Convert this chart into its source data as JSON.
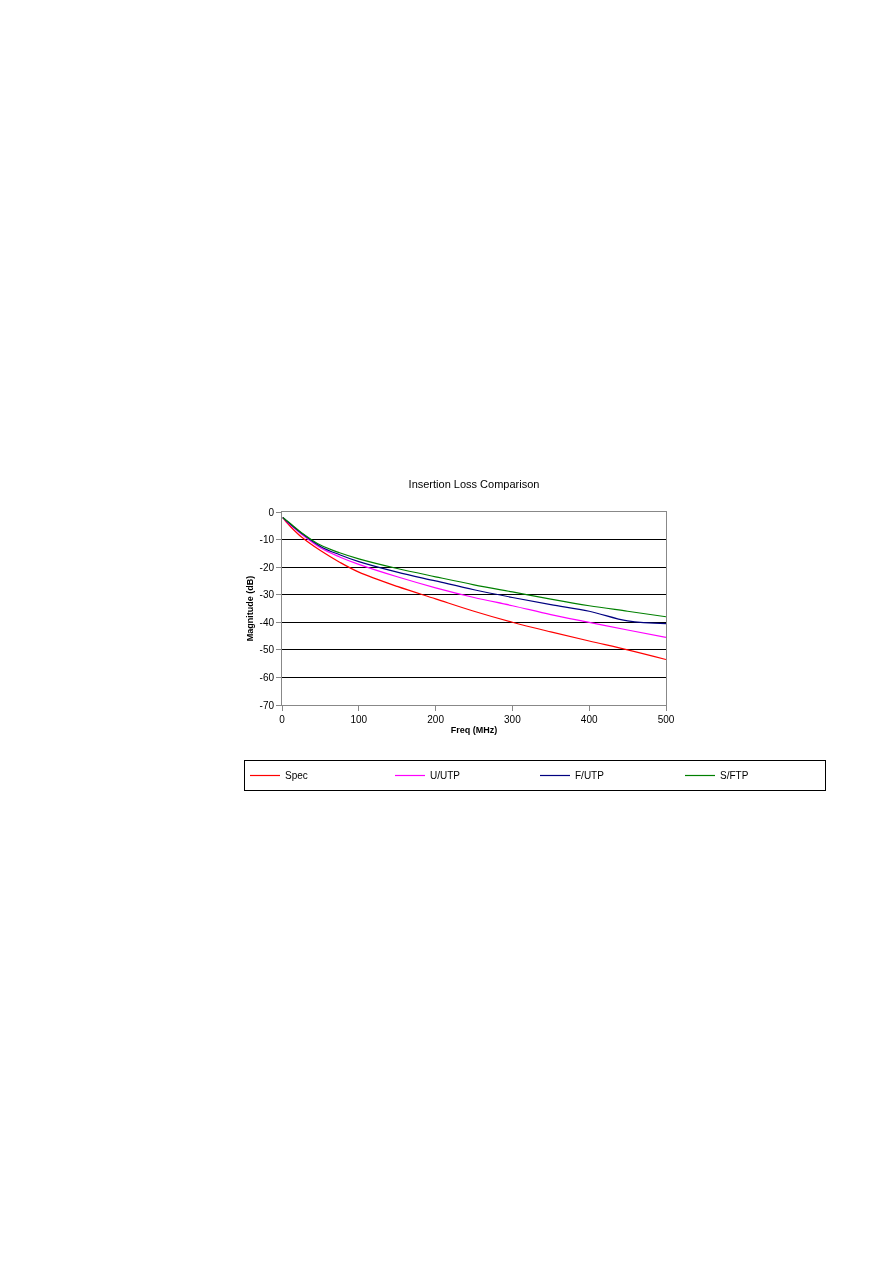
{
  "chart_data": {
    "type": "line",
    "title": "Insertion Loss Comparison",
    "xlabel": "Freq (MHz)",
    "ylabel": "Magnitude (dB)",
    "xlim": [
      0,
      500
    ],
    "xticks": [
      0,
      100,
      200,
      300,
      400,
      500
    ],
    "ylim": [
      -70,
      0
    ],
    "yticks": [
      0,
      -10,
      -20,
      -30,
      -40,
      -50,
      -60,
      -70
    ],
    "grid": "y",
    "legend": "bottom",
    "marker": "none",
    "line_style": "solid",
    "x": [
      1,
      5,
      10,
      25,
      50,
      75,
      100,
      150,
      200,
      250,
      300,
      350,
      400,
      450,
      500
    ],
    "series": [
      {
        "name": "Spec",
        "color": "#ff0000",
        "values": [
          -2,
          -3.5,
          -5,
          -9,
          -14,
          -18.2,
          -21.8,
          -27,
          -31.5,
          -36,
          -40,
          -43.5,
          -46.8,
          -50,
          -53.5
        ]
      },
      {
        "name": "U/UTP",
        "color": "#ff00ff",
        "values": [
          -2,
          -3.2,
          -4.5,
          -8,
          -13,
          -16.3,
          -19,
          -23.5,
          -27.5,
          -31,
          -34,
          -37.2,
          -40,
          -42.8,
          -45.5
        ]
      },
      {
        "name": "F/UTP",
        "color": "#000080",
        "values": [
          -2,
          -3,
          -4.2,
          -7.6,
          -12.5,
          -15.5,
          -18,
          -21.8,
          -25,
          -28.2,
          -31,
          -33.6,
          -36,
          -39.5,
          -40.5
        ]
      },
      {
        "name": "S/FTP",
        "color": "#008000",
        "values": [
          -2,
          -2.9,
          -4,
          -7.4,
          -12,
          -14.8,
          -17,
          -20.5,
          -23.5,
          -26.4,
          -29,
          -31.6,
          -34,
          -36,
          -38
        ]
      }
    ]
  }
}
